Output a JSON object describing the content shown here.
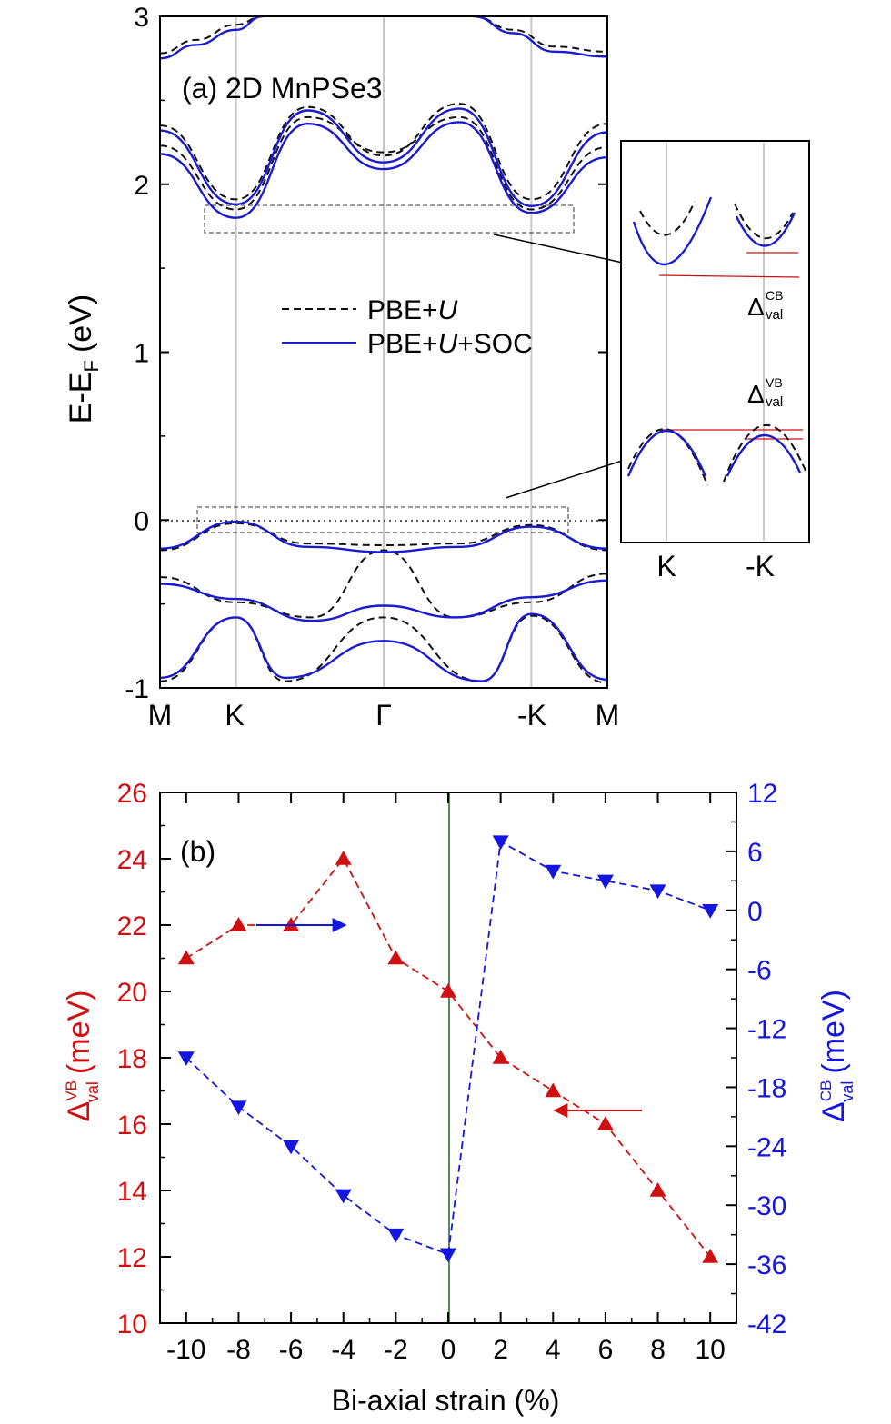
{
  "colors": {
    "pbe": "#111111",
    "soc": "#1a1ad0",
    "red": "#d01010",
    "blue": "#1515e0",
    "grid": "#c8c8c8",
    "zero_line": "#2e5e2e"
  },
  "chart_data": [
    {
      "type": "line",
      "id": "band_structure",
      "title": "(a) 2D MnPSe3",
      "ylabel": "E-E",
      "ylabel_sub": "F",
      "ylabel_unit": "(eV)",
      "ylim": [
        -1,
        3
      ],
      "y_ticks": [
        "3",
        "2",
        "1",
        "0",
        "-1"
      ],
      "k_labels": [
        "M",
        "K",
        "Γ",
        "-K",
        "M"
      ],
      "legend": [
        {
          "style": "dashed",
          "prefix": "PBE+",
          "italic": "U",
          "suffix": ""
        },
        {
          "style": "solid",
          "prefix": "PBE+",
          "italic": "U",
          "suffix": "+SOC"
        }
      ],
      "series": [
        {
          "name": "PBE+U",
          "bands": [
            {
              "x": [
                0,
                0.17,
                0.33,
                0.5,
                0.67,
                0.83,
                1
              ],
              "y": [
                -0.18,
                -0.02,
                -0.14,
                -0.15,
                -0.14,
                -0.03,
                -0.18
              ]
            },
            {
              "x": [
                0,
                0.17,
                0.34,
                0.5,
                0.66,
                0.83,
                1
              ],
              "y": [
                -0.34,
                -0.49,
                -0.58,
                -0.18,
                -0.58,
                -0.49,
                -0.32
              ]
            },
            {
              "x": [
                0,
                0.17,
                0.28,
                0.5,
                0.72,
                0.83,
                1
              ],
              "y": [
                -0.96,
                -0.58,
                -0.96,
                -0.58,
                -0.96,
                -0.57,
                -0.97
              ]
            },
            {
              "x": [
                0,
                0.17,
                0.33,
                0.5,
                0.67,
                0.83,
                1
              ],
              "y": [
                2.35,
                1.91,
                2.46,
                2.17,
                2.48,
                1.91,
                2.36
              ]
            },
            {
              "x": [
                0,
                0.17,
                0.33,
                0.5,
                0.67,
                0.83,
                1
              ],
              "y": [
                2.23,
                1.85,
                2.4,
                2.19,
                2.4,
                1.85,
                2.22
              ]
            },
            {
              "x": [
                0,
                0.08,
                0.17,
                0.23
              ],
              "y": [
                2.78,
                2.86,
                2.95,
                3.05
              ]
            },
            {
              "x": [
                0.7,
                0.79,
                0.88,
                1
              ],
              "y": [
                3.05,
                2.92,
                2.82,
                2.79
              ]
            }
          ]
        },
        {
          "name": "PBE+U+SOC",
          "bands": [
            {
              "x": [
                0,
                0.17,
                0.33,
                0.5,
                0.67,
                0.83,
                1
              ],
              "y": [
                -0.17,
                -0.01,
                -0.16,
                -0.19,
                -0.16,
                -0.04,
                -0.17
              ]
            },
            {
              "x": [
                0,
                0.17,
                0.34,
                0.5,
                0.66,
                0.83,
                1
              ],
              "y": [
                -0.38,
                -0.47,
                -0.6,
                -0.51,
                -0.58,
                -0.46,
                -0.36
              ]
            },
            {
              "x": [
                0,
                0.17,
                0.28,
                0.5,
                0.72,
                0.83,
                1
              ],
              "y": [
                -0.94,
                -0.58,
                -0.94,
                -0.72,
                -0.96,
                -0.56,
                -0.95
              ]
            },
            {
              "x": [
                0,
                0.17,
                0.33,
                0.5,
                0.67,
                0.83,
                1
              ],
              "y": [
                2.32,
                1.88,
                2.44,
                2.13,
                2.45,
                1.87,
                2.31
              ]
            },
            {
              "x": [
                0,
                0.17,
                0.33,
                0.5,
                0.67,
                0.83,
                1
              ],
              "y": [
                2.18,
                1.8,
                2.36,
                2.09,
                2.37,
                1.83,
                2.16
              ]
            },
            {
              "x": [
                0,
                0.08,
                0.17,
                0.23
              ],
              "y": [
                2.75,
                2.83,
                2.92,
                3.02
              ]
            },
            {
              "x": [
                0.7,
                0.79,
                0.88,
                1
              ],
              "y": [
                3.02,
                2.9,
                2.79,
                2.76
              ]
            }
          ]
        }
      ],
      "inset": {
        "k_labels": [
          "K",
          "-K"
        ],
        "cb_label": "Δ",
        "cb_sub": "val",
        "cb_sup": "CB",
        "vb_label": "Δ",
        "vb_sub": "val",
        "vb_sup": "VB"
      }
    },
    {
      "type": "scatter",
      "id": "strain",
      "title": "(b)",
      "xlabel": "Bi-axial strain (%)",
      "ylabel_left": "Δ",
      "ylabel_left_sub": "val",
      "ylabel_left_sup": "VB",
      "ylabel_left_unit": "(meV)",
      "ylabel_right": "Δ",
      "ylabel_right_sub": "val",
      "ylabel_right_sup": "CB",
      "ylabel_right_unit": "(meV)",
      "x": [
        -10,
        -8,
        -6,
        -4,
        -2,
        0,
        2,
        4,
        6,
        8,
        10
      ],
      "x_ticks": [
        "-10",
        "-8",
        "-6",
        "-4",
        "-2",
        "0",
        "2",
        "4",
        "6",
        "8",
        "10"
      ],
      "xlim": [
        -11,
        11
      ],
      "ylim_left": [
        10,
        26
      ],
      "y_ticks_left": [
        "10",
        "12",
        "14",
        "16",
        "18",
        "20",
        "22",
        "24",
        "26"
      ],
      "ylim_right": [
        -42,
        12
      ],
      "y_ticks_right": [
        "-42",
        "-36",
        "-30",
        "-24",
        "-18",
        "-12",
        "-6",
        "0",
        "6",
        "12"
      ],
      "series": [
        {
          "name": "Δval VB",
          "axis": "left",
          "marker": "triangle-up",
          "values": [
            21,
            22,
            22,
            24,
            21,
            20,
            18,
            17,
            16,
            14,
            12
          ]
        },
        {
          "name": "Δval CB",
          "axis": "right",
          "marker": "triangle-down",
          "values": [
            -15,
            -20,
            -24,
            -29,
            -33,
            -35,
            7,
            4,
            3,
            2,
            0
          ]
        }
      ]
    }
  ]
}
